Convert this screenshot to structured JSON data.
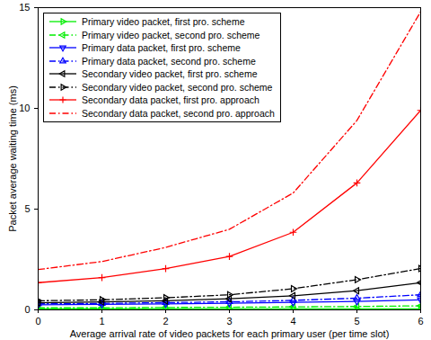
{
  "chart_data": {
    "type": "line",
    "x_label": "Average arrival rate of video packets for each primary user (per time slot)",
    "y_label": "Packet average waiting time (ms)",
    "x": [
      0,
      1,
      2,
      3,
      4,
      5,
      6
    ],
    "xlim": [
      0,
      6
    ],
    "xticks": [
      0,
      1,
      2,
      3,
      4,
      5,
      6
    ],
    "ylim": [
      0,
      15
    ],
    "yticks": [
      0,
      5,
      10,
      15
    ],
    "grid": false,
    "legend": "top-left",
    "series": [
      {
        "name": "Primary video packet, first pro. scheme",
        "color": "#00ee00",
        "marker": "triangle-right",
        "line_style": "solid",
        "values": [
          0.05,
          0.05,
          0.05,
          0.05,
          0.05,
          0.05,
          0.05
        ]
      },
      {
        "name": "Primary video packet, second pro. scheme",
        "color": "#00ee00",
        "marker": "triangle-left",
        "line_style": "dashdot",
        "values": [
          0.1,
          0.1,
          0.12,
          0.13,
          0.15,
          0.17,
          0.2
        ]
      },
      {
        "name": "Primary data packet, first pro. scheme",
        "color": "#0000ff",
        "marker": "triangle-down",
        "line_style": "solid",
        "values": [
          0.25,
          0.27,
          0.3,
          0.33,
          0.37,
          0.42,
          0.5
        ]
      },
      {
        "name": "Primary data packet, second pro. scheme",
        "color": "#0000ff",
        "marker": "triangle-up",
        "line_style": "dashdot",
        "values": [
          0.3,
          0.32,
          0.36,
          0.4,
          0.47,
          0.58,
          0.75
        ]
      },
      {
        "name": "Secondary video packet, first pro. scheme",
        "color": "#000000",
        "marker": "triangle-left",
        "line_style": "solid",
        "values": [
          0.35,
          0.4,
          0.45,
          0.55,
          0.7,
          0.95,
          1.35
        ]
      },
      {
        "name": "Secondary video packet, second pro. scheme",
        "color": "#000000",
        "marker": "triangle-right",
        "line_style": "dashdot",
        "values": [
          0.45,
          0.5,
          0.6,
          0.75,
          1.05,
          1.5,
          2.05
        ]
      },
      {
        "name": "Secondary data packet, first pro. approach",
        "color": "#ff0000",
        "marker": "plus",
        "line_style": "solid",
        "values": [
          1.35,
          1.6,
          2.05,
          2.65,
          3.85,
          6.3,
          9.9
        ]
      },
      {
        "name": "Secondary data packet, second pro. approach",
        "color": "#ff0000",
        "marker": "none",
        "line_style": "dashdot",
        "values": [
          2.0,
          2.4,
          3.1,
          4.0,
          5.8,
          9.4,
          14.8
        ]
      }
    ]
  }
}
